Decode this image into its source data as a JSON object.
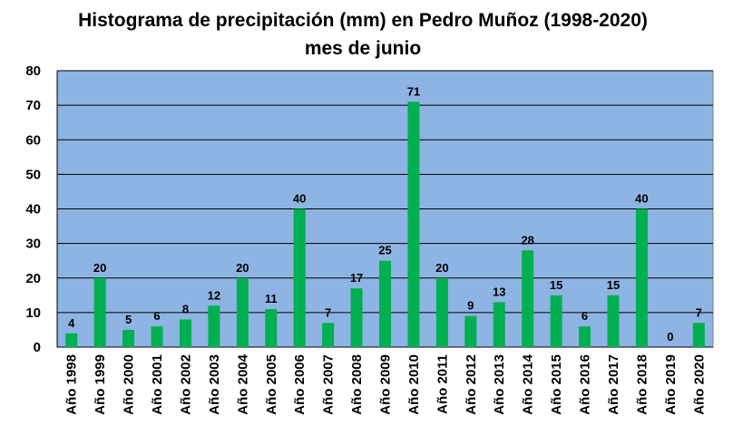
{
  "chart_data": {
    "type": "bar",
    "title": "Histograma de precipitación (mm) en Pedro Muñoz (1998-2020)",
    "subtitle": "mes de junio",
    "xlabel": "",
    "ylabel": "",
    "ylim": [
      0,
      80
    ],
    "yticks": [
      "0",
      "10",
      "20",
      "30",
      "40",
      "50",
      "60",
      "70",
      "80"
    ],
    "grid": true,
    "legend": "none",
    "categories": [
      "Año 1998",
      "Año 1999",
      "Año 2000",
      "Año 2001",
      "Año 2002",
      "Año 2003",
      "Año 2004",
      "Año 2005",
      "Año 2006",
      "Año 2007",
      "Año 2008",
      "Año 2009",
      "Año 2010",
      "Año 2011",
      "Año 2012",
      "Año 2013",
      "Año 2014",
      "Año 2015",
      "Año 2016",
      "Año 2017",
      "Año 2018",
      "Año 2019",
      "Año 2020"
    ],
    "values": [
      4,
      20,
      5,
      6,
      8,
      12,
      20,
      11,
      40,
      7,
      17,
      25,
      71,
      20,
      9,
      13,
      28,
      15,
      6,
      15,
      40,
      0,
      7
    ],
    "data_labels": [
      "4",
      "20",
      "5",
      "6",
      "8",
      "12",
      "20",
      "11",
      "40",
      "7",
      "17",
      "25",
      "71",
      "20",
      "9",
      "13",
      "28",
      "15",
      "6",
      "15",
      "40",
      "0",
      "7"
    ],
    "colors": {
      "plot_background": "#8EB4E3",
      "bar": "#00B050",
      "gridline": "#000000",
      "axis": "#000000",
      "text": "#000000"
    }
  }
}
